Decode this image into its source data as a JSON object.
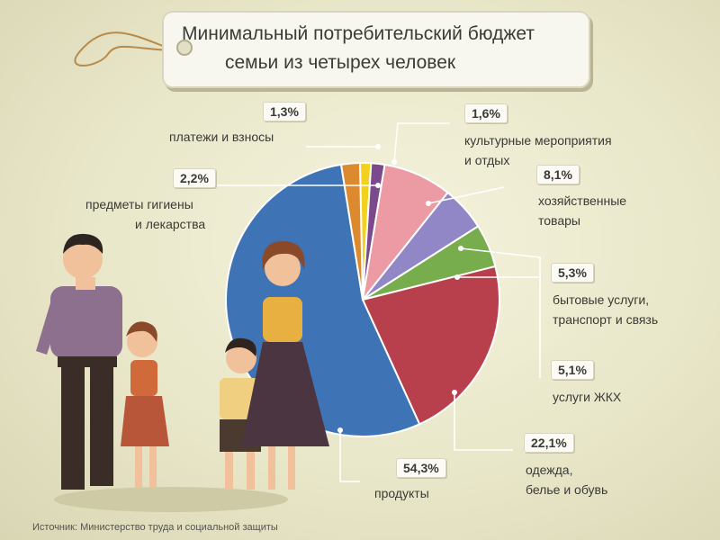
{
  "title": {
    "line1": "Минимальный потребительский бюджет",
    "line2": "семьи из четырех человек"
  },
  "source": "Источник: Министерство труда и социальной защиты",
  "chart_data": {
    "type": "pie",
    "title": "Минимальный потребительский бюджет семьи из четырех человек",
    "unit": "%",
    "slices": [
      {
        "label": "платежи и взносы",
        "value": 1.3,
        "value_label": "1,3%",
        "color": "#f2d21f"
      },
      {
        "label": "культурные мероприятия и отдых",
        "value": 1.6,
        "value_label": "1,6%",
        "color": "#7a4a8c"
      },
      {
        "label": "хозяйственные товары",
        "value": 8.1,
        "value_label": "8,1%",
        "color": "#ec9aa4"
      },
      {
        "label": "бытовые услуги, транспорт и связь",
        "value": 5.3,
        "value_label": "5,3%",
        "color": "#9287c6"
      },
      {
        "label": "услуги ЖКХ",
        "value": 5.1,
        "value_label": "5,1%",
        "color": "#78ad4e"
      },
      {
        "label": "одежда, белье и обувь",
        "value": 22.1,
        "value_label": "22,1%",
        "color": "#b8404c"
      },
      {
        "label": "продукты",
        "value": 54.3,
        "value_label": "54,3%",
        "color": "#3e73b5"
      },
      {
        "label": "предметы гигиены и лекарства",
        "value": 2.2,
        "value_label": "2,2%",
        "color": "#dd8a2e"
      }
    ]
  },
  "labels": {
    "payments": {
      "pct": "1,3%",
      "l1": "платежи и взносы"
    },
    "culture": {
      "pct": "1,6%",
      "l1": "культурные мероприятия",
      "l2": "и отдых"
    },
    "household": {
      "pct": "8,1%",
      "l1": "хозяйственные",
      "l2": "товары"
    },
    "services": {
      "pct": "5,3%",
      "l1": "бытовые услуги,",
      "l2": "транспорт и связь"
    },
    "utilities": {
      "pct": "5,1%",
      "l1": "услуги ЖКХ"
    },
    "clothing": {
      "pct": "22,1%",
      "l1": "одежда,",
      "l2": "белье и обувь"
    },
    "food": {
      "pct": "54,3%",
      "l1": "продукты"
    },
    "hygiene": {
      "pct": "2,2%",
      "l1": "предметы гигиены",
      "l2": "и лекарства"
    }
  },
  "colors": {
    "leader": "#ffffff",
    "background": "#e9e7c9"
  }
}
